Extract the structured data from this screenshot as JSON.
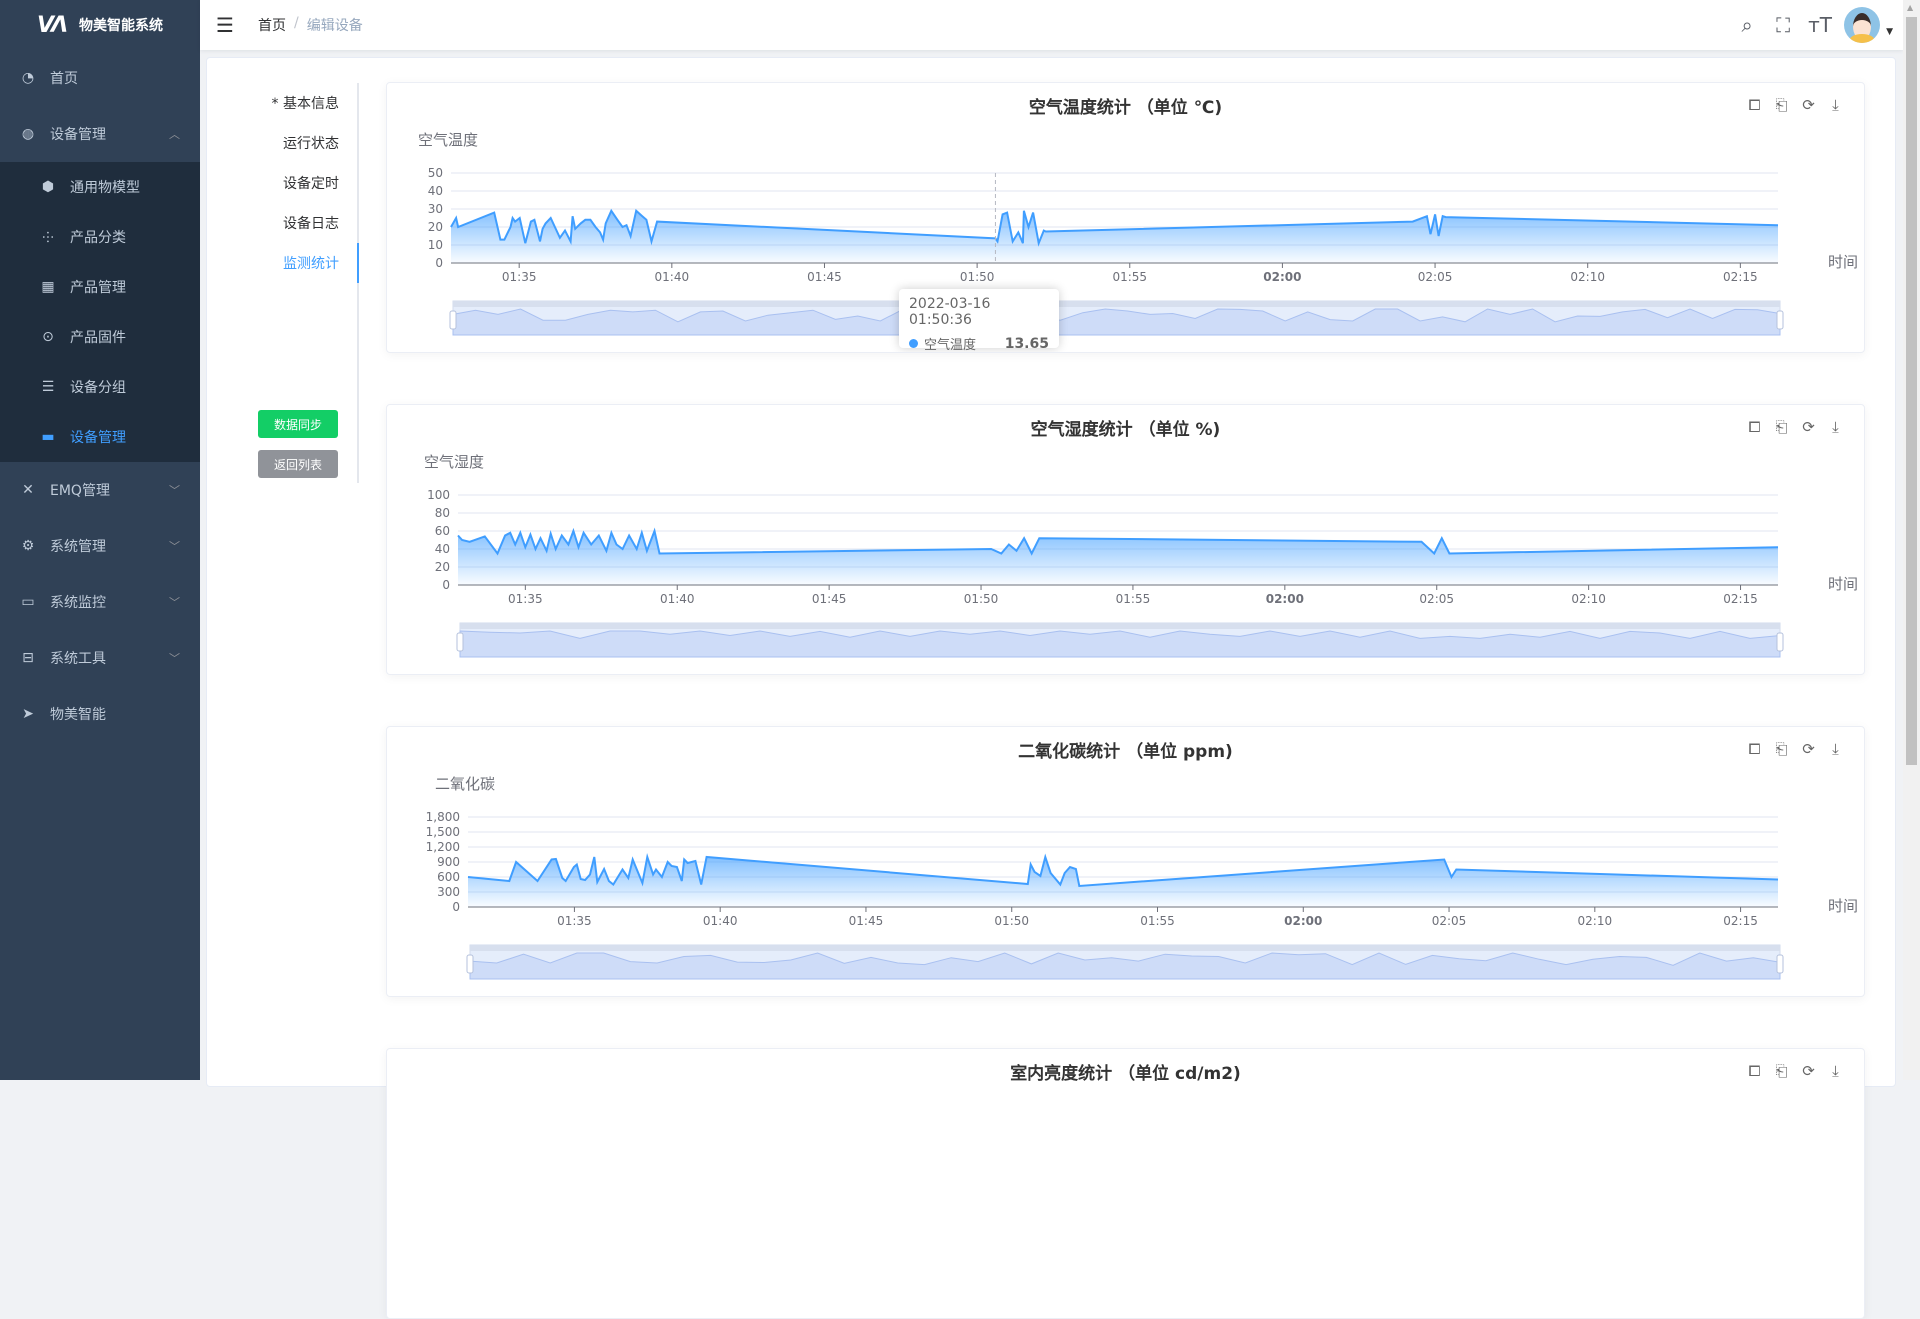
{
  "app": {
    "title": "物美智能系统",
    "logo": "WM"
  },
  "sidebar": {
    "items": [
      {
        "label": "首页",
        "icon": "dashboard-icon"
      },
      {
        "label": "设备管理",
        "icon": "device-icon",
        "expanded": true
      },
      {
        "label": "通用物模型",
        "icon": "cube-icon"
      },
      {
        "label": "产品分类",
        "icon": "tree-icon"
      },
      {
        "label": "产品管理",
        "icon": "grid-icon"
      },
      {
        "label": "产品固件",
        "icon": "firmware-icon"
      },
      {
        "label": "设备分组",
        "icon": "group-icon"
      },
      {
        "label": "设备管理",
        "icon": "list-icon",
        "active": true
      },
      {
        "label": "EMQ管理",
        "icon": "network-icon"
      },
      {
        "label": "系统管理",
        "icon": "gear-icon"
      },
      {
        "label": "系统监控",
        "icon": "monitor-icon"
      },
      {
        "label": "系统工具",
        "icon": "toolbox-icon"
      },
      {
        "label": "物美智能",
        "icon": "paper-plane-icon"
      }
    ]
  },
  "header": {
    "breadcrumb": [
      "首页",
      "编辑设备"
    ]
  },
  "tabs": [
    "* 基本信息",
    "运行状态",
    "设备定时",
    "设备日志",
    "监测统计"
  ],
  "active_tab": "监测统计",
  "buttons": {
    "sync": "数据同步",
    "back": "返回列表"
  },
  "colors": {
    "accent": "#409EFF",
    "sync": "#13ce66",
    "back": "#909399",
    "sidebar": "#304156"
  },
  "tooltip": {
    "time": "2022-03-16 01:50:36",
    "series": "空气温度",
    "value": "13.65"
  },
  "chart4": {
    "title": "室内亮度统计 （单位 cd/m2)"
  },
  "chart_data": [
    {
      "type": "area",
      "title": "空气温度统计 （单位 ℃)",
      "ylabel": "空气温度",
      "xlabel": "时间",
      "ylim": [
        0,
        50
      ],
      "yticks": [
        0,
        10,
        20,
        30,
        40,
        50
      ],
      "xrange": [
        "01:32:46",
        "02:16:14"
      ],
      "xticks": [
        "01:35",
        "01:40",
        "01:45",
        "01:50",
        "01:55",
        "02:00",
        "02:05",
        "02:10",
        "02:15"
      ],
      "points": [
        [
          "01:32:46",
          20
        ],
        [
          "01:32:56",
          25
        ],
        [
          "01:33:00",
          20
        ],
        [
          "01:34:11",
          28
        ],
        [
          "01:34:23",
          13
        ],
        [
          "01:34:31",
          13
        ],
        [
          "01:34:43",
          20
        ],
        [
          "01:34:47",
          25
        ],
        [
          "01:34:52",
          23
        ],
        [
          "01:35:01",
          25
        ],
        [
          "01:35:12",
          11
        ],
        [
          "01:35:23",
          23
        ],
        [
          "01:35:30",
          24
        ],
        [
          "01:35:41",
          12
        ],
        [
          "01:35:46",
          19
        ],
        [
          "01:35:52",
          22
        ],
        [
          "01:36:02",
          25
        ],
        [
          "01:36:20",
          14
        ],
        [
          "01:36:30",
          18
        ],
        [
          "01:36:41",
          12
        ],
        [
          "01:36:45",
          26
        ],
        [
          "01:36:50",
          19
        ],
        [
          "01:37:01",
          22
        ],
        [
          "01:37:10",
          24
        ],
        [
          "01:37:20",
          24
        ],
        [
          "01:37:30",
          20
        ],
        [
          "01:37:39",
          17
        ],
        [
          "01:37:45",
          13
        ],
        [
          "01:37:50",
          22
        ],
        [
          "01:38:01",
          29
        ],
        [
          "01:38:13",
          24
        ],
        [
          "01:38:23",
          20
        ],
        [
          "01:38:31",
          21
        ],
        [
          "01:38:39",
          15
        ],
        [
          "01:38:50",
          29
        ],
        [
          "01:39:02",
          26
        ],
        [
          "01:39:10",
          24
        ],
        [
          "01:39:20",
          12
        ],
        [
          "01:39:31",
          23
        ],
        [
          "01:50:36",
          13.65
        ],
        [
          "01:50:40",
          12
        ],
        [
          "01:50:50",
          27
        ],
        [
          "01:50:59",
          28
        ],
        [
          "01:51:10",
          12
        ],
        [
          "01:51:21",
          17
        ],
        [
          "01:51:30",
          11
        ],
        [
          "01:51:32",
          29
        ],
        [
          "01:51:41",
          20
        ],
        [
          "01:51:50",
          28
        ],
        [
          "01:52:01",
          11
        ],
        [
          "01:52:11",
          18
        ],
        [
          "01:52:15",
          17.5
        ],
        [
          "02:04:16",
          23
        ],
        [
          "02:04:44",
          26
        ],
        [
          "02:04:51",
          16
        ],
        [
          "02:05:00",
          27
        ],
        [
          "02:05:07",
          15
        ],
        [
          "02:05:15",
          26
        ],
        [
          "02:05:21",
          25.5
        ],
        [
          "02:16:14",
          21
        ]
      ]
    },
    {
      "type": "area",
      "title": "空气湿度统计 （单位 %)",
      "ylabel": "空气湿度",
      "xlabel": "时间",
      "ylim": [
        0,
        100
      ],
      "yticks": [
        0,
        20,
        40,
        60,
        80,
        100
      ],
      "xrange": [
        "01:32:47",
        "02:16:14"
      ],
      "xticks": [
        "01:35",
        "01:40",
        "01:45",
        "01:50",
        "01:55",
        "02:00",
        "02:05",
        "02:10",
        "02:15"
      ],
      "points": [
        [
          "01:32:47",
          55
        ],
        [
          "01:32:55",
          50
        ],
        [
          "01:33:10",
          48
        ],
        [
          "01:33:40",
          54
        ],
        [
          "01:34:05",
          35
        ],
        [
          "01:34:20",
          55
        ],
        [
          "01:34:30",
          58
        ],
        [
          "01:34:40",
          45
        ],
        [
          "01:34:50",
          58
        ],
        [
          "01:35:00",
          42
        ],
        [
          "01:35:10",
          56
        ],
        [
          "01:35:20",
          40
        ],
        [
          "01:35:30",
          52
        ],
        [
          "01:35:42",
          38
        ],
        [
          "01:35:50",
          57
        ],
        [
          "01:36:00",
          40
        ],
        [
          "01:36:12",
          55
        ],
        [
          "01:36:25",
          45
        ],
        [
          "01:36:35",
          60
        ],
        [
          "01:36:45",
          42
        ],
        [
          "01:36:55",
          58
        ],
        [
          "01:37:10",
          45
        ],
        [
          "01:37:25",
          55
        ],
        [
          "01:37:40",
          38
        ],
        [
          "01:37:50",
          58
        ],
        [
          "01:38:00",
          45
        ],
        [
          "01:38:12",
          40
        ],
        [
          "01:38:25",
          55
        ],
        [
          "01:38:40",
          40
        ],
        [
          "01:38:50",
          58
        ],
        [
          "01:39:00",
          38
        ],
        [
          "01:39:15",
          60
        ],
        [
          "01:39:25",
          35
        ],
        [
          "01:50:20",
          40
        ],
        [
          "01:50:40",
          35
        ],
        [
          "01:50:55",
          45
        ],
        [
          "01:51:10",
          38
        ],
        [
          "01:51:25",
          52
        ],
        [
          "01:51:40",
          35
        ],
        [
          "01:51:55",
          52
        ],
        [
          "02:04:30",
          48
        ],
        [
          "02:04:55",
          35
        ],
        [
          "02:05:10",
          52
        ],
        [
          "02:05:25",
          35
        ],
        [
          "02:16:14",
          42
        ]
      ]
    },
    {
      "type": "area",
      "title": "二氧化碳统计 （单位 ppm)",
      "ylabel": "二氧化碳",
      "xlabel": "时间",
      "ylim": [
        0,
        1800
      ],
      "yticks": [
        0,
        300,
        600,
        900,
        1200,
        1500,
        1800
      ],
      "xrange": [
        "01:31:21",
        "02:16:17"
      ],
      "xticks": [
        "01:35",
        "01:40",
        "01:45",
        "01:50",
        "01:55",
        "02:00",
        "02:05",
        "02:10",
        "02:15"
      ],
      "points": [
        [
          "01:31:21",
          600
        ],
        [
          "01:32:46",
          520
        ],
        [
          "01:33:00",
          900
        ],
        [
          "01:33:44",
          520
        ],
        [
          "01:34:13",
          950
        ],
        [
          "01:34:22",
          960
        ],
        [
          "01:34:35",
          580
        ],
        [
          "01:34:42",
          520
        ],
        [
          "01:34:59",
          800
        ],
        [
          "01:35:05",
          850
        ],
        [
          "01:35:13",
          560
        ],
        [
          "01:35:22",
          540
        ],
        [
          "01:35:32",
          650
        ],
        [
          "01:35:41",
          1000
        ],
        [
          "01:35:47",
          500
        ],
        [
          "01:36:01",
          760
        ],
        [
          "01:36:11",
          520
        ],
        [
          "01:36:20",
          450
        ],
        [
          "01:36:39",
          750
        ],
        [
          "01:36:51",
          580
        ],
        [
          "01:37:00",
          950
        ],
        [
          "01:37:20",
          480
        ],
        [
          "01:37:30",
          1000
        ],
        [
          "01:37:42",
          650
        ],
        [
          "01:37:48",
          750
        ],
        [
          "01:38:00",
          600
        ],
        [
          "01:38:12",
          900
        ],
        [
          "01:38:20",
          820
        ],
        [
          "01:38:31",
          800
        ],
        [
          "01:38:41",
          520
        ],
        [
          "01:38:46",
          950
        ],
        [
          "01:38:53",
          880
        ],
        [
          "01:39:09",
          920
        ],
        [
          "01:39:21",
          450
        ],
        [
          "01:39:32",
          1000
        ],
        [
          "01:50:33",
          460
        ],
        [
          "01:50:39",
          850
        ],
        [
          "01:50:47",
          700
        ],
        [
          "01:50:59",
          620
        ],
        [
          "01:51:09",
          1000
        ],
        [
          "01:51:20",
          680
        ],
        [
          "01:51:40",
          450
        ],
        [
          "01:51:49",
          680
        ],
        [
          "01:52:00",
          800
        ],
        [
          "01:52:12",
          760
        ],
        [
          "01:52:19",
          420
        ],
        [
          "02:04:50",
          950
        ],
        [
          "02:05:05",
          600
        ],
        [
          "02:05:15",
          750
        ],
        [
          "02:16:17",
          550
        ]
      ]
    }
  ]
}
